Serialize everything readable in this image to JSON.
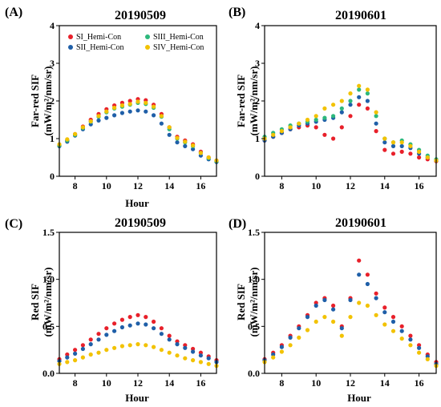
{
  "colors": {
    "SI": "#e8202a",
    "SII": "#1f5fa8",
    "SIII": "#2db87c",
    "SIV": "#f2c200"
  },
  "legend_entries": [
    "SI_Hemi-Con",
    "SII_Hemi-Con",
    "SIII_Hemi-Con",
    "SIV_Hemi-Con"
  ],
  "chart_data": [
    {
      "type": "scatter",
      "panel_label": "(A)",
      "title": "20190509",
      "xlabel": "Hour",
      "ylabel": [
        "Far-red SIF",
        "(mW/m²/nm/sr)"
      ],
      "xlim": [
        7,
        17
      ],
      "ylim": [
        0,
        4
      ],
      "xticks": [
        "8",
        "10",
        "12",
        "14",
        "16"
      ],
      "yticks": [
        "0",
        "1",
        "2",
        "3",
        "4"
      ],
      "legend": "top",
      "series": [
        {
          "name": "SI_Hemi-Con",
          "color": "SI",
          "x": [
            7.0,
            7.5,
            8.0,
            8.5,
            9.0,
            9.5,
            10.0,
            10.5,
            11.0,
            11.5,
            12.0,
            12.5,
            13.0,
            13.5,
            14.0,
            14.5,
            15.0,
            15.5,
            16.0,
            16.5,
            17.0
          ],
          "y": [
            0.82,
            0.95,
            1.12,
            1.32,
            1.5,
            1.65,
            1.78,
            1.88,
            1.95,
            2.0,
            2.05,
            2.02,
            1.9,
            1.65,
            1.3,
            1.05,
            0.95,
            0.85,
            0.65,
            0.5,
            0.42
          ]
        },
        {
          "name": "SII_Hemi-Con",
          "color": "SII",
          "x": [
            7.0,
            7.5,
            8.0,
            8.5,
            9.0,
            9.5,
            10.0,
            10.5,
            11.0,
            11.5,
            12.0,
            12.5,
            13.0,
            13.5,
            14.0,
            14.5,
            15.0,
            15.5,
            16.0,
            16.5,
            17.0
          ],
          "y": [
            0.8,
            0.92,
            1.08,
            1.25,
            1.38,
            1.48,
            1.55,
            1.62,
            1.68,
            1.72,
            1.75,
            1.72,
            1.62,
            1.4,
            1.1,
            0.9,
            0.8,
            0.72,
            0.55,
            0.45,
            0.38
          ]
        },
        {
          "name": "SIII_Hemi-Con",
          "color": "SIII",
          "x": [
            7.0,
            7.5,
            8.0,
            8.5,
            9.0,
            9.5,
            10.0,
            10.5,
            11.0,
            11.5,
            12.0,
            12.5,
            13.0,
            13.5,
            14.0,
            14.5,
            15.0,
            15.5,
            16.0,
            16.5,
            17.0
          ],
          "y": [
            0.82,
            0.95,
            1.1,
            1.28,
            1.45,
            1.58,
            1.7,
            1.8,
            1.85,
            1.9,
            1.95,
            1.92,
            1.82,
            1.58,
            1.25,
            1.0,
            0.9,
            0.8,
            0.62,
            0.48,
            0.4
          ]
        },
        {
          "name": "SIV_Hemi-Con",
          "color": "SIV",
          "x": [
            7.0,
            7.5,
            8.0,
            8.5,
            9.0,
            9.5,
            10.0,
            10.5,
            11.0,
            11.5,
            12.0,
            12.5,
            13.0,
            13.5,
            14.0,
            14.5,
            15.0,
            15.5,
            16.0,
            16.5,
            17.0
          ],
          "y": [
            0.85,
            0.98,
            1.12,
            1.3,
            1.46,
            1.6,
            1.72,
            1.82,
            1.88,
            1.92,
            1.98,
            1.95,
            1.85,
            1.6,
            1.3,
            1.02,
            0.92,
            0.82,
            0.62,
            0.5,
            0.42
          ]
        }
      ]
    },
    {
      "type": "scatter",
      "panel_label": "(B)",
      "title": "20190601",
      "xlabel": "",
      "ylabel": [
        "Far-red SIF",
        "(mW/m²/nm/sr)"
      ],
      "xlim": [
        7,
        17
      ],
      "ylim": [
        0,
        4
      ],
      "xticks": [
        "8",
        "10",
        "12",
        "14",
        "16"
      ],
      "yticks": [
        "0",
        "1",
        "2",
        "3",
        "4"
      ],
      "series": [
        {
          "name": "SI_Hemi-Con",
          "color": "SI",
          "x": [
            7.0,
            7.5,
            8.0,
            8.5,
            9.0,
            9.5,
            10.0,
            10.5,
            11.0,
            11.5,
            12.0,
            12.5,
            13.0,
            13.5,
            14.0,
            14.5,
            15.0,
            15.5,
            16.0,
            16.5,
            17.0
          ],
          "y": [
            0.95,
            1.05,
            1.15,
            1.25,
            1.3,
            1.35,
            1.3,
            1.1,
            1.0,
            1.3,
            1.6,
            1.9,
            1.8,
            1.2,
            0.7,
            0.6,
            0.65,
            0.6,
            0.5,
            0.45,
            0.4
          ]
        },
        {
          "name": "SII_Hemi-Con",
          "color": "SII",
          "x": [
            7.0,
            7.5,
            8.0,
            8.5,
            9.0,
            9.5,
            10.0,
            10.5,
            11.0,
            11.5,
            12.0,
            12.5,
            13.0,
            13.5,
            14.0,
            14.5,
            15.0,
            15.5,
            16.0,
            16.5,
            17.0
          ],
          "y": [
            0.95,
            1.05,
            1.15,
            1.25,
            1.35,
            1.4,
            1.45,
            1.5,
            1.55,
            1.7,
            1.9,
            2.1,
            2.0,
            1.4,
            0.9,
            0.8,
            0.8,
            0.75,
            0.6,
            0.5,
            0.42
          ]
        },
        {
          "name": "SIII_Hemi-Con",
          "color": "SIII",
          "x": [
            7.0,
            7.5,
            8.0,
            8.5,
            9.0,
            9.5,
            10.0,
            10.5,
            11.0,
            11.5,
            12.0,
            12.5,
            13.0,
            13.5,
            14.0,
            14.5,
            15.0,
            15.5,
            16.0,
            16.5,
            17.0
          ],
          "y": [
            1.05,
            1.15,
            1.25,
            1.35,
            1.4,
            1.45,
            1.5,
            1.55,
            1.6,
            1.8,
            2.0,
            2.3,
            2.2,
            1.6,
            1.0,
            0.9,
            0.95,
            0.85,
            0.7,
            0.55,
            0.45
          ]
        },
        {
          "name": "SIV_Hemi-Con",
          "color": "SIV",
          "x": [
            7.0,
            7.5,
            8.0,
            8.5,
            9.0,
            9.5,
            10.0,
            10.5,
            11.0,
            11.5,
            12.0,
            12.5,
            13.0,
            13.5,
            14.0,
            14.5,
            15.0,
            15.5,
            16.0,
            16.5,
            17.0
          ],
          "y": [
            1.0,
            1.1,
            1.2,
            1.3,
            1.4,
            1.5,
            1.6,
            1.8,
            1.9,
            2.0,
            2.2,
            2.4,
            2.3,
            1.7,
            1.0,
            0.9,
            0.9,
            0.8,
            0.65,
            0.5,
            0.42
          ]
        }
      ]
    },
    {
      "type": "scatter",
      "panel_label": "(C)",
      "title": "20190509",
      "xlabel": "Hour",
      "ylabel": [
        "Red SIF",
        "(mW/m²/nm/sr)"
      ],
      "xlim": [
        7,
        17
      ],
      "ylim": [
        0,
        1.5
      ],
      "xticks": [
        "8",
        "10",
        "12",
        "14",
        "16"
      ],
      "yticks": [
        "0.0",
        "0.5",
        "1.0",
        "1.5"
      ],
      "series": [
        {
          "name": "SI_Hemi-Con",
          "color": "SI",
          "x": [
            7.0,
            7.5,
            8.0,
            8.5,
            9.0,
            9.5,
            10.0,
            10.5,
            11.0,
            11.5,
            12.0,
            12.5,
            13.0,
            13.5,
            14.0,
            14.5,
            15.0,
            15.5,
            16.0,
            16.5,
            17.0
          ],
          "y": [
            0.15,
            0.2,
            0.25,
            0.3,
            0.36,
            0.42,
            0.48,
            0.53,
            0.57,
            0.6,
            0.62,
            0.6,
            0.55,
            0.48,
            0.4,
            0.34,
            0.3,
            0.26,
            0.22,
            0.18,
            0.14
          ]
        },
        {
          "name": "SII_Hemi-Con",
          "color": "SII",
          "x": [
            7.0,
            7.5,
            8.0,
            8.5,
            9.0,
            9.5,
            10.0,
            10.5,
            11.0,
            11.5,
            12.0,
            12.5,
            13.0,
            13.5,
            14.0,
            14.5,
            15.0,
            15.5,
            16.0,
            16.5,
            17.0
          ],
          "y": [
            0.13,
            0.17,
            0.21,
            0.26,
            0.31,
            0.36,
            0.41,
            0.45,
            0.49,
            0.51,
            0.53,
            0.52,
            0.48,
            0.42,
            0.36,
            0.31,
            0.27,
            0.23,
            0.19,
            0.16,
            0.12
          ]
        },
        {
          "name": "SIV_Hemi-Con",
          "color": "SIV",
          "x": [
            7.0,
            7.5,
            8.0,
            8.5,
            9.0,
            9.5,
            10.0,
            10.5,
            11.0,
            11.5,
            12.0,
            12.5,
            13.0,
            13.5,
            14.0,
            14.5,
            15.0,
            15.5,
            16.0,
            16.5,
            17.0
          ],
          "y": [
            0.1,
            0.12,
            0.14,
            0.17,
            0.2,
            0.22,
            0.25,
            0.27,
            0.29,
            0.3,
            0.31,
            0.3,
            0.28,
            0.25,
            0.22,
            0.19,
            0.16,
            0.14,
            0.12,
            0.1,
            0.08
          ]
        }
      ]
    },
    {
      "type": "scatter",
      "panel_label": "(D)",
      "title": "20190601",
      "xlabel": "Hour",
      "ylabel": [
        "Red SIF",
        "(mW/m²/nm/sr)"
      ],
      "xlim": [
        7,
        17
      ],
      "ylim": [
        0,
        1.5
      ],
      "xticks": [
        "8",
        "10",
        "12",
        "14",
        "16"
      ],
      "yticks": [
        "0.0",
        "0.5",
        "1.0",
        "1.5"
      ],
      "series": [
        {
          "name": "SI_Hemi-Con",
          "color": "SI",
          "x": [
            7.0,
            7.5,
            8.0,
            8.5,
            9.0,
            9.5,
            10.0,
            10.5,
            11.0,
            11.5,
            12.0,
            12.5,
            13.0,
            13.5,
            14.0,
            14.5,
            15.0,
            15.5,
            16.0,
            16.5,
            17.0
          ],
          "y": [
            0.15,
            0.22,
            0.3,
            0.4,
            0.5,
            0.62,
            0.75,
            0.8,
            0.72,
            0.5,
            0.8,
            1.2,
            1.05,
            0.85,
            0.7,
            0.6,
            0.5,
            0.4,
            0.3,
            0.2,
            0.12
          ]
        },
        {
          "name": "SII_Hemi-Con",
          "color": "SII",
          "x": [
            7.0,
            7.5,
            8.0,
            8.5,
            9.0,
            9.5,
            10.0,
            10.5,
            11.0,
            11.5,
            12.0,
            12.5,
            13.0,
            13.5,
            14.0,
            14.5,
            15.0,
            15.5,
            16.0,
            16.5,
            17.0
          ],
          "y": [
            0.14,
            0.2,
            0.28,
            0.38,
            0.48,
            0.6,
            0.72,
            0.78,
            0.68,
            0.48,
            0.78,
            1.05,
            0.95,
            0.8,
            0.65,
            0.55,
            0.45,
            0.36,
            0.27,
            0.18,
            0.1
          ]
        },
        {
          "name": "SIV_Hemi-Con",
          "color": "SIV",
          "x": [
            7.0,
            7.5,
            8.0,
            8.5,
            9.0,
            9.5,
            10.0,
            10.5,
            11.0,
            11.5,
            12.0,
            12.5,
            13.0,
            13.5,
            14.0,
            14.5,
            15.0,
            15.5,
            16.0,
            16.5,
            17.0
          ],
          "y": [
            0.12,
            0.17,
            0.23,
            0.3,
            0.38,
            0.46,
            0.55,
            0.6,
            0.55,
            0.4,
            0.6,
            0.75,
            0.72,
            0.62,
            0.52,
            0.45,
            0.37,
            0.3,
            0.22,
            0.15,
            0.08
          ]
        }
      ]
    }
  ]
}
